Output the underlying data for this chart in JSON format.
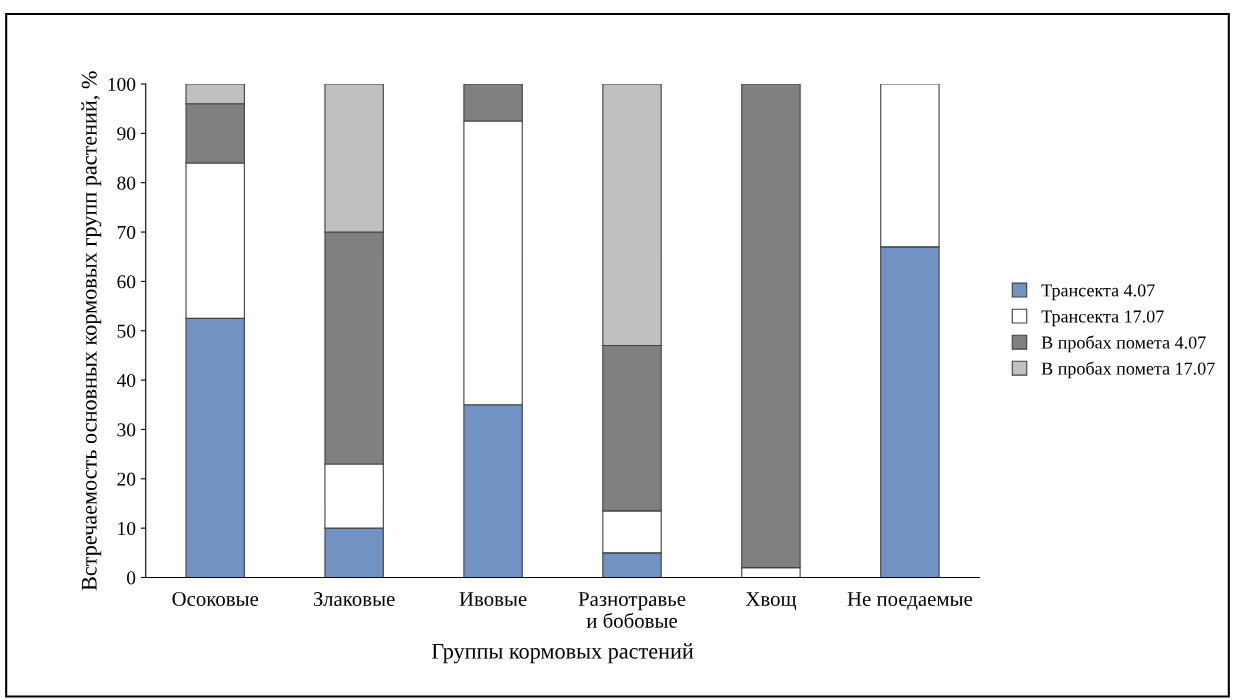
{
  "chart_data": {
    "type": "bar",
    "stacked": true,
    "xlabel": "Группы кормовых растений",
    "ylabel": "Встречаемость основных кормовых групп растений, %",
    "categories": [
      "Осоковые",
      "Злаковые",
      "Ивовые",
      "Разнотравье\nи бобовые",
      "Хвощ",
      "Не поедаемые"
    ],
    "series": [
      {
        "name": "Трансекта 4.07",
        "color": "#7093c3",
        "values": [
          52.5,
          10,
          35,
          5,
          null,
          67
        ]
      },
      {
        "name": "Трансекта 17.07",
        "color": "#ffffff",
        "values": [
          31.5,
          13,
          57.5,
          8.5,
          2,
          33
        ]
      },
      {
        "name": "В пробах помета 4.07",
        "color": "#808080",
        "values": [
          12,
          47,
          7.5,
          33.5,
          98,
          null
        ]
      },
      {
        "name": "В пробах помета 17.07",
        "color": "#c0c0c0",
        "values": [
          4,
          30,
          null,
          53,
          null,
          null
        ]
      }
    ],
    "ylim": [
      0,
      100
    ],
    "yticks": [
      0,
      10,
      20,
      30,
      40,
      50,
      60,
      70,
      80,
      90,
      100
    ],
    "grid": false,
    "legend": "right"
  }
}
